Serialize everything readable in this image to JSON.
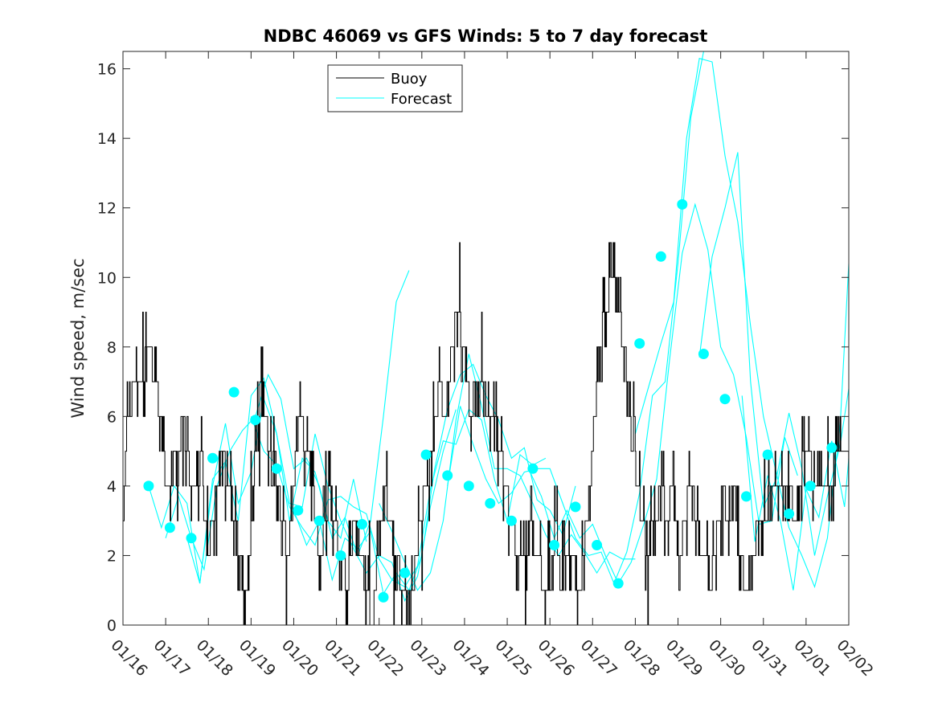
{
  "chart_data": {
    "type": "line",
    "title": "NDBC 46069 vs GFS Winds: 5 to 7 day forecast",
    "xlabel": "",
    "ylabel": "Wind speed, m/sec",
    "xlim": [
      0,
      17
    ],
    "ylim": [
      0,
      16.5
    ],
    "yticks": [
      0,
      2,
      4,
      6,
      8,
      10,
      12,
      14,
      16
    ],
    "xtick_labels": [
      "01/16",
      "01/17",
      "01/18",
      "01/19",
      "01/20",
      "01/21",
      "01/22",
      "01/23",
      "01/24",
      "01/25",
      "01/26",
      "01/27",
      "01/28",
      "01/29",
      "01/30",
      "01/31",
      "02/01",
      "02/02"
    ],
    "legend": {
      "location": "top-left",
      "entries": [
        "Buoy",
        "Forecast"
      ]
    },
    "colors": {
      "buoy": "#000000",
      "forecast": "#00ffff",
      "axes": "#262626"
    },
    "buoy_anchor": {
      "x": [
        0.0,
        0.1,
        0.3,
        0.45,
        0.6,
        0.75,
        0.85,
        0.95,
        1.0,
        1.1,
        1.25,
        1.4,
        1.5,
        1.6,
        1.75,
        1.85,
        1.9,
        2.0,
        2.1,
        2.2,
        2.3,
        2.45,
        2.6,
        2.75,
        2.85,
        2.95,
        3.05,
        3.15,
        3.25,
        3.35,
        3.45,
        3.6,
        3.75,
        3.85,
        3.95,
        4.05,
        4.15,
        4.3,
        4.45,
        4.6,
        4.75,
        4.85,
        4.95,
        5.1,
        5.25,
        5.4,
        5.55,
        5.7,
        5.85,
        5.95,
        6.1,
        6.25,
        6.4,
        6.55,
        6.7,
        6.85,
        6.95,
        7.1,
        7.25,
        7.4,
        7.55,
        7.7,
        7.85,
        7.95,
        8.05,
        8.15,
        8.25,
        8.4,
        8.55,
        8.7,
        8.85,
        8.95,
        9.1,
        9.25,
        9.4,
        9.55,
        9.7,
        9.85,
        9.95,
        10.05,
        10.15,
        10.25,
        10.4,
        10.55,
        10.7,
        10.85,
        10.95,
        11.05,
        11.15,
        11.3,
        11.45,
        11.6,
        11.75,
        11.85,
        11.95,
        12.05,
        12.15,
        12.3,
        12.45,
        12.6,
        12.75,
        12.85,
        12.95,
        13.05,
        13.15,
        13.3,
        13.45,
        13.55,
        13.65,
        13.75,
        13.85,
        13.95,
        14.05,
        14.15,
        14.3,
        14.45,
        14.6,
        14.75,
        14.85,
        14.95,
        15.05,
        15.15,
        15.3,
        15.45,
        15.6,
        15.75,
        15.85,
        15.95,
        16.05,
        16.15,
        16.3,
        16.45,
        16.6,
        16.75,
        16.85,
        16.95,
        17.0
      ],
      "y": [
        3,
        6,
        7,
        7,
        8,
        7,
        6,
        5,
        4,
        4,
        5,
        6,
        5,
        4,
        4,
        5,
        3,
        2,
        3,
        4,
        5,
        4,
        3,
        2,
        1,
        2,
        4,
        6,
        7,
        6,
        5,
        4,
        3,
        2,
        3,
        5,
        6,
        5,
        4,
        2,
        3,
        4,
        3,
        2,
        1,
        3,
        2,
        1,
        0,
        2,
        4,
        3,
        2,
        1,
        0,
        2,
        3,
        4,
        5,
        7,
        6,
        8,
        9,
        8,
        7,
        6,
        7,
        7,
        6,
        6,
        5,
        4,
        3,
        2,
        2,
        3,
        2,
        1,
        1,
        2,
        3,
        1,
        2,
        2,
        1,
        3,
        4,
        6,
        8,
        9,
        10,
        9,
        8,
        6,
        5,
        4,
        3,
        2,
        3,
        4,
        3,
        4,
        3,
        2,
        3,
        4,
        3,
        2,
        2,
        1,
        2,
        3,
        4,
        3,
        4,
        2,
        1,
        2,
        3,
        3,
        3,
        4,
        4,
        4,
        4,
        3,
        4,
        5,
        5,
        4,
        4,
        4,
        4,
        5,
        5,
        5,
        5
      ]
    },
    "forecast_traces": [
      {
        "x": [
          0.6,
          0.9,
          1.2,
          1.5,
          1.8,
          2.1,
          2.4,
          2.7,
          3.0,
          3.3,
          3.6,
          3.9,
          4.2,
          4.5,
          4.8,
          5.1,
          5.4,
          5.7
        ],
        "y": [
          4.0,
          2.8,
          4.0,
          3.5,
          1.2,
          4.2,
          4.7,
          3.0,
          6.6,
          7.1,
          5.5,
          3.0,
          4.8,
          4.4,
          3.0,
          2.5,
          4.2,
          2.4
        ]
      },
      {
        "x": [
          1.0,
          1.3,
          1.6,
          1.9,
          2.2,
          2.5,
          2.8,
          3.1,
          3.4,
          3.7,
          4.0,
          4.3,
          4.6,
          4.9,
          5.2,
          5.5,
          5.8,
          6.1,
          6.4,
          6.7
        ],
        "y": [
          2.5,
          3.7,
          2.5,
          1.6,
          4.0,
          5.0,
          5.6,
          6.0,
          7.2,
          6.5,
          4.5,
          4.8,
          4.0,
          2.5,
          3.1,
          2.0,
          3.0,
          6.0,
          9.3,
          10.2
        ]
      },
      {
        "x": [
          1.5,
          1.8,
          2.1,
          2.4,
          2.7,
          3.0,
          3.3,
          3.6,
          3.9,
          4.2,
          4.5,
          4.8,
          5.1,
          5.4,
          5.7,
          6.0,
          6.3,
          6.6,
          6.9,
          7.2,
          7.5,
          7.8
        ],
        "y": [
          2.5,
          1.2,
          4.0,
          5.8,
          3.5,
          4.4,
          6.5,
          5.5,
          3.5,
          3.4,
          5.5,
          4.0,
          3.0,
          2.2,
          1.5,
          2.0,
          1.8,
          0.7,
          1.4,
          3.4,
          5.0,
          6.2
        ]
      },
      {
        "x": [
          3.0,
          3.3,
          3.6,
          3.9,
          4.2,
          4.5,
          4.8,
          5.1,
          5.4,
          5.7,
          6.0,
          6.3,
          6.6,
          6.9,
          7.2,
          7.5,
          7.8,
          8.1,
          8.4,
          8.7,
          9.0,
          9.3,
          9.6,
          9.9
        ],
        "y": [
          6.0,
          5.0,
          4.6,
          3.4,
          2.8,
          2.3,
          3.6,
          3.7,
          3.4,
          3.2,
          1.9,
          1.3,
          1.1,
          1.7,
          3.9,
          5.3,
          5.2,
          6.2,
          5.9,
          4.2,
          3.0,
          4.9,
          4.6,
          4.8
        ]
      },
      {
        "x": [
          4.0,
          4.3,
          4.6,
          4.9,
          5.2,
          5.5,
          5.8,
          6.1,
          6.4,
          6.7,
          7.0,
          7.3,
          7.6,
          7.9,
          8.2,
          8.5,
          8.8,
          9.1,
          9.4,
          9.7,
          10.0,
          10.3,
          10.6
        ],
        "y": [
          3.3,
          2.3,
          3.0,
          1.3,
          2.5,
          2.2,
          2.7,
          0.9,
          1.5,
          1.0,
          2.0,
          4.5,
          6.2,
          7.2,
          7.5,
          6.6,
          5.9,
          4.8,
          5.1,
          3.6,
          3.3,
          2.6,
          4.0
        ]
      },
      {
        "x": [
          6.0,
          6.3,
          6.6,
          6.9,
          7.2,
          7.5,
          7.8,
          8.1,
          8.4,
          8.7,
          9.0,
          9.3,
          9.6,
          9.9,
          10.2,
          10.5,
          10.8,
          11.1,
          11.4,
          11.7,
          12.0
        ],
        "y": [
          3.5,
          2.7,
          1.8,
          1.0,
          1.5,
          3.0,
          5.9,
          7.8,
          6.3,
          4.5,
          4.5,
          4.3,
          3.5,
          2.6,
          2.0,
          2.6,
          2.1,
          1.5,
          2.1,
          1.9,
          1.9
        ]
      },
      {
        "x": [
          7.6,
          7.9,
          8.2,
          8.5,
          8.8,
          9.1,
          9.4,
          9.7,
          10.0,
          10.3,
          10.6,
          10.9,
          11.2,
          11.5,
          11.8,
          12.1,
          12.4,
          12.7,
          13.0,
          13.3,
          13.6
        ],
        "y": [
          4.0,
          6.3,
          5.2,
          4.2,
          3.5,
          3.8,
          4.4,
          4.5,
          4.5,
          3.5,
          2.5,
          2.0,
          2.1,
          1.2,
          2.1,
          3.8,
          6.6,
          7.0,
          10.4,
          14.6,
          16.5
        ]
      },
      {
        "x": [
          9.5,
          9.8,
          10.1,
          10.4,
          10.7,
          11.0,
          11.3,
          11.6,
          11.9,
          12.2,
          12.5,
          12.8,
          13.1,
          13.4,
          13.7,
          14.0,
          14.3,
          14.6,
          14.9,
          15.2,
          15.5,
          15.8
        ],
        "y": [
          4.5,
          3.7,
          2.5,
          3.3,
          2.5,
          2.9,
          2.0,
          1.2,
          1.8,
          2.9,
          4.2,
          7.6,
          10.7,
          12.1,
          10.8,
          8.0,
          7.2,
          5.4,
          2.9,
          3.0,
          5.4,
          4.3
        ]
      },
      {
        "x": [
          12.0,
          12.3,
          12.6,
          12.9,
          13.2,
          13.5,
          13.8,
          14.1,
          14.4,
          14.7,
          15.0,
          15.3,
          15.6,
          15.9,
          16.2,
          16.5,
          16.8,
          17.0
        ],
        "y": [
          5.5,
          6.8,
          8.1,
          9.3,
          14.0,
          16.3,
          16.2,
          13.5,
          11.6,
          8.6,
          6.0,
          4.4,
          2.8,
          2.0,
          1.1,
          2.5,
          5.8,
          10.4
        ]
      },
      {
        "x": [
          13.5,
          13.8,
          14.1,
          14.4,
          14.7,
          15.0,
          15.3,
          15.6,
          15.9,
          16.2,
          16.5,
          16.8,
          17.0
        ],
        "y": [
          7.7,
          10.6,
          12.0,
          13.6,
          7.0,
          3.4,
          4.2,
          6.1,
          4.5,
          2.0,
          3.7,
          5.2,
          6.8
        ]
      },
      {
        "x": [
          14.5,
          14.8,
          15.1,
          15.4,
          15.7,
          16.0,
          16.3,
          16.6,
          16.9,
          17.0
        ],
        "y": [
          6.6,
          2.4,
          4.3,
          3.0,
          1.0,
          3.9,
          3.1,
          5.3,
          3.4,
          4.8
        ]
      }
    ],
    "forecast_points": {
      "x": [
        0.6,
        1.1,
        1.6,
        2.1,
        2.6,
        3.1,
        3.6,
        4.1,
        4.6,
        5.1,
        5.6,
        6.1,
        6.6,
        7.1,
        7.6,
        8.1,
        8.6,
        9.1,
        9.6,
        10.1,
        10.6,
        11.1,
        11.6,
        12.1,
        12.6,
        13.1,
        13.6,
        14.1,
        14.6,
        15.1,
        15.6,
        16.1,
        16.6
      ],
      "y": [
        4.0,
        2.8,
        2.5,
        4.8,
        6.7,
        5.9,
        4.5,
        3.3,
        3.0,
        2.0,
        2.9,
        0.8,
        1.5,
        4.9,
        4.3,
        4.0,
        3.5,
        3.0,
        4.5,
        2.3,
        3.4,
        2.3,
        1.2,
        8.1,
        10.6,
        12.1,
        7.8,
        6.5,
        3.7,
        4.9,
        3.2,
        4.0,
        5.1
      ]
    }
  }
}
